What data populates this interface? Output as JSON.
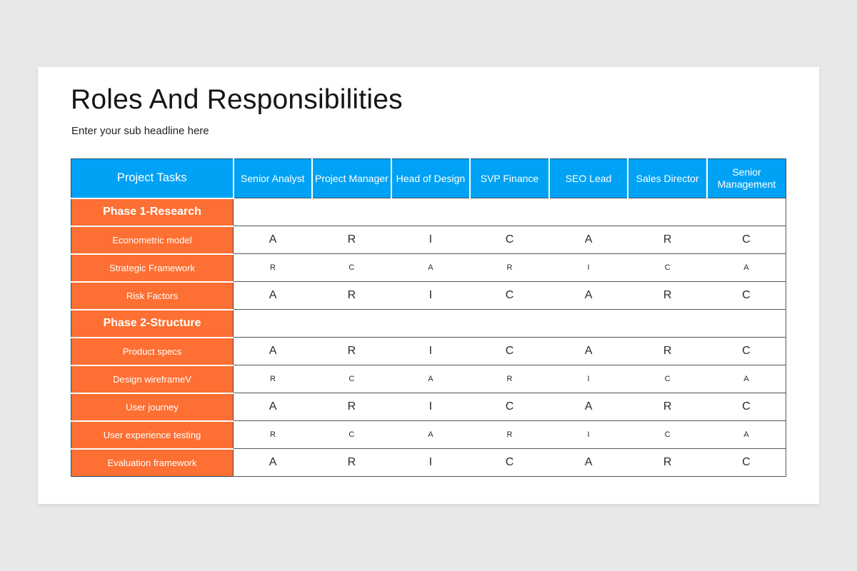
{
  "slide": {
    "title": "Roles And Responsibilities",
    "subtitle": "Enter your sub headline here"
  },
  "colors": {
    "header_bg": "#00a2f5",
    "task_bg": "#fd6f32",
    "page_bg": "#e9e8e9"
  },
  "table": {
    "headers": [
      "Project Tasks",
      "Senior Analyst",
      "Project Manager",
      "Head of Design",
      "SVP Finance",
      "SEO Lead",
      "Sales Director",
      "Senior Management"
    ],
    "phases": [
      {
        "name": "Phase 1-Research",
        "rows": [
          {
            "task": "Econometric model",
            "values": [
              "A",
              "R",
              "I",
              "C",
              "A",
              "R",
              "C"
            ]
          },
          {
            "task": "Strategic Framework",
            "values": [
              "R",
              "C",
              "A",
              "R",
              "I",
              "C",
              "A"
            ]
          },
          {
            "task": "Risk Factors",
            "values": [
              "A",
              "R",
              "I",
              "C",
              "A",
              "R",
              "C"
            ]
          }
        ]
      },
      {
        "name": "Phase 2-Structure",
        "rows": [
          {
            "task": "Product specs",
            "values": [
              "A",
              "R",
              "I",
              "C",
              "A",
              "R",
              "C"
            ]
          },
          {
            "task": "Design wireframeV",
            "values": [
              "R",
              "C",
              "A",
              "R",
              "I",
              "C",
              "A"
            ]
          },
          {
            "task": "User journey",
            "values": [
              "A",
              "R",
              "I",
              "C",
              "A",
              "R",
              "C"
            ]
          },
          {
            "task": "User experience testing",
            "values": [
              "R",
              "C",
              "A",
              "R",
              "I",
              "C",
              "A"
            ]
          },
          {
            "task": "Evaluation framework",
            "values": [
              "A",
              "R",
              "I",
              "C",
              "A",
              "R",
              "C"
            ]
          }
        ]
      }
    ]
  }
}
